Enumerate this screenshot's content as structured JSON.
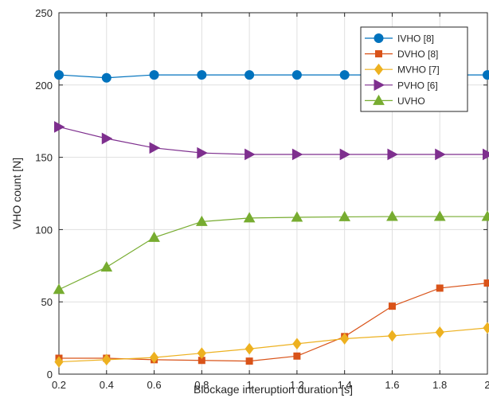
{
  "chart_data": {
    "type": "line",
    "xlabel": "Blockage interuption duration [s]",
    "ylabel": "VHO count [N]",
    "xlim": [
      0.2,
      2
    ],
    "ylim": [
      0,
      250
    ],
    "x": [
      0.2,
      0.4,
      0.6,
      0.8,
      1,
      1.2,
      1.4,
      1.6,
      1.8,
      2
    ],
    "x_tick_labels": [
      "0.2",
      "0.4",
      "0.6",
      "0.8",
      "1",
      "1.2",
      "1.4",
      "1.6",
      "1.8",
      "2"
    ],
    "y_ticks": [
      0,
      50,
      100,
      150,
      200,
      250
    ],
    "y_tick_labels": [
      "0",
      "50",
      "100",
      "150",
      "200",
      "250"
    ],
    "grid": true,
    "legend_position": "top-right",
    "series": [
      {
        "name": "IVHO [8]",
        "color": "#0072BD",
        "marker": "circle",
        "values": [
          207,
          205,
          207,
          207,
          207,
          207,
          207,
          207,
          207,
          207
        ]
      },
      {
        "name": "DVHO [8]",
        "color": "#D95319",
        "marker": "square",
        "values": [
          11,
          11,
          10,
          9.5,
          9,
          12.5,
          26,
          47,
          59.5,
          63
        ]
      },
      {
        "name": "MVHO [7]",
        "color": "#EDB120",
        "marker": "diamond",
        "values": [
          8.5,
          10,
          11.5,
          14.5,
          17.5,
          21,
          24.5,
          26.5,
          29,
          32
        ]
      },
      {
        "name": "PVHO [6]",
        "color": "#7E2F8E",
        "marker": "triangle-right",
        "values": [
          171,
          163,
          156.5,
          153,
          152,
          152,
          152,
          152,
          152,
          152
        ]
      },
      {
        "name": "UVHO",
        "color": "#77AC30",
        "marker": "triangle-up",
        "values": [
          58.5,
          74,
          94.5,
          105.5,
          108,
          108.5,
          108.8,
          109,
          109,
          109
        ]
      }
    ]
  }
}
